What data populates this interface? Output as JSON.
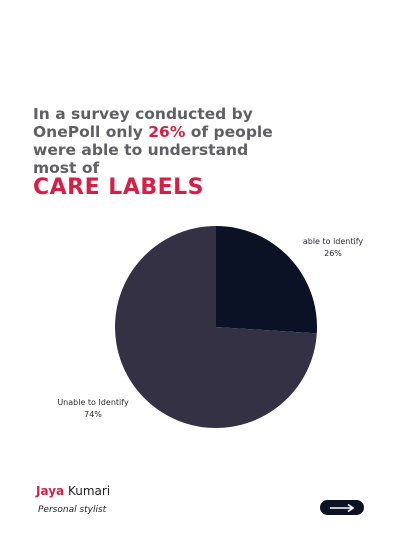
{
  "headline": {
    "line1": "In a survey conducted by",
    "line2_pre": "OnePoll only ",
    "line2_highlight": "26%",
    "line2_post": " of people",
    "line3": "were able to understand",
    "line4": "most of"
  },
  "big_title": "CARE LABELS",
  "chart_data": {
    "type": "pie",
    "title": "",
    "slices": [
      {
        "label": "able to identify",
        "value": 26,
        "value_label": "26%",
        "color": "#0c1226"
      },
      {
        "label": "Unable to Identify",
        "value": 74,
        "value_label": "74%",
        "color": "#353145"
      }
    ],
    "start_angle_deg": 0,
    "direction": "clockwise"
  },
  "author": {
    "first_name": "Jaya",
    "last_name": "Kumari",
    "role": "Personal stylist"
  },
  "colors": {
    "accent": "#d61f45",
    "text": "#5f5f66",
    "dark": "#0c1226"
  },
  "next_button": {
    "icon": "arrow-right-icon"
  }
}
